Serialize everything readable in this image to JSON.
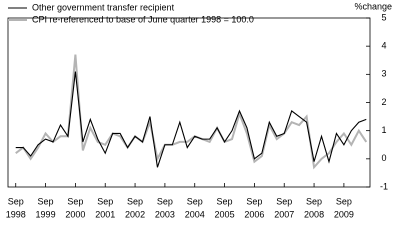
{
  "chart_data": {
    "type": "line",
    "y_label": "%change",
    "categories": [
      [
        "Sep",
        "1998"
      ],
      null,
      null,
      null,
      [
        "Sep",
        "1999"
      ],
      null,
      null,
      null,
      [
        "Sep",
        "2000"
      ],
      null,
      null,
      null,
      [
        "Sep",
        "2001"
      ],
      null,
      null,
      null,
      [
        "Sep",
        "2002"
      ],
      null,
      null,
      null,
      [
        "Sep",
        "2003"
      ],
      null,
      null,
      null,
      [
        "Sep",
        "2004"
      ],
      null,
      null,
      null,
      [
        "Sep",
        "2005"
      ],
      null,
      null,
      null,
      [
        "Sep",
        "2006"
      ],
      null,
      null,
      null,
      [
        "Sep",
        "2007"
      ],
      null,
      null,
      null,
      [
        "Sep",
        "2008"
      ],
      null,
      null,
      null,
      [
        "Sep",
        "2009"
      ],
      null,
      null,
      null
    ],
    "series": [
      {
        "name": "Other government transfer recipient",
        "color": "#000000",
        "values": [
          0.4,
          0.4,
          0.1,
          0.5,
          0.7,
          0.6,
          1.2,
          0.8,
          3.1,
          0.6,
          1.4,
          0.7,
          0.2,
          0.9,
          0.9,
          0.4,
          0.8,
          0.6,
          1.5,
          -0.3,
          0.5,
          0.5,
          1.3,
          0.4,
          0.8,
          0.7,
          0.7,
          1.1,
          0.6,
          1.0,
          1.7,
          1.1,
          0.0,
          0.2,
          1.3,
          0.8,
          0.9,
          1.7,
          1.5,
          1.3,
          -0.1,
          0.8,
          -0.1,
          0.9,
          0.5,
          1.0,
          1.3,
          1.4
        ]
      },
      {
        "name": "CPI re-referenced to base of June quarter 1998 = 100.0",
        "color": "#b4b4b4",
        "values": [
          0.2,
          0.4,
          0.0,
          0.4,
          0.9,
          0.6,
          0.8,
          0.8,
          3.7,
          0.3,
          1.1,
          0.6,
          0.5,
          0.9,
          0.8,
          0.4,
          0.8,
          0.6,
          1.3,
          0.0,
          0.5,
          0.5,
          0.6,
          0.6,
          0.8,
          0.7,
          0.6,
          1.1,
          0.6,
          0.7,
          1.6,
          0.9,
          -0.1,
          0.1,
          1.2,
          0.7,
          0.9,
          1.3,
          1.2,
          1.5,
          -0.3,
          0.0,
          0.2,
          0.6,
          0.9,
          0.5,
          1.0,
          0.6
        ]
      }
    ],
    "ylim": [
      -1,
      5
    ],
    "yticks": [
      -1,
      0,
      1,
      2,
      3,
      4,
      5
    ]
  }
}
